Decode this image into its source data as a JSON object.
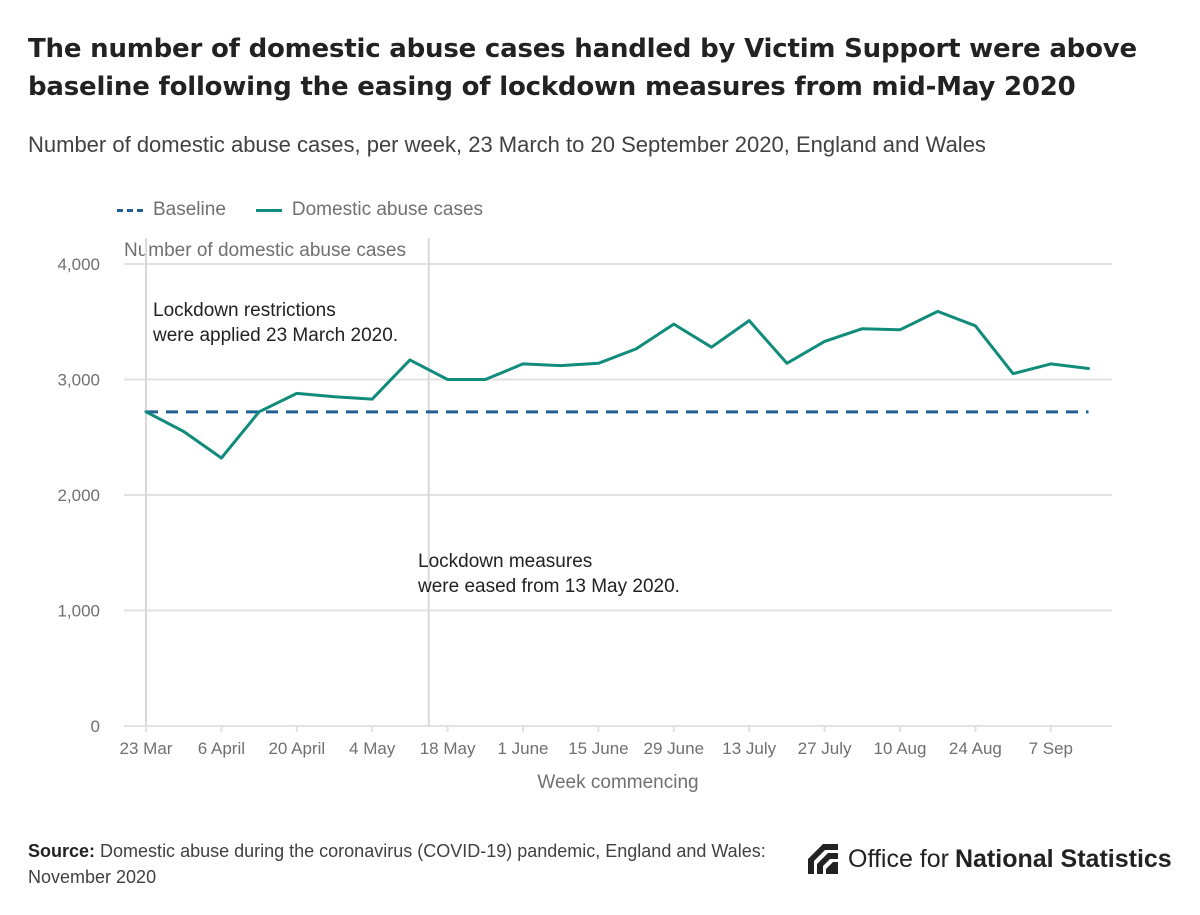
{
  "title": "The number of domestic abuse cases handled by Victim Support were above baseline following the easing of lockdown measures from mid-May 2020",
  "subtitle": "Number of domestic abuse cases, per week, 23 March to 20 September 2020, England and Wales",
  "legend": {
    "baseline": "Baseline",
    "cases": "Domestic abuse cases"
  },
  "colors": {
    "cases": "#118c7b",
    "baseline": "#206095",
    "grid": "#e2e2e3",
    "annotation_line": "#d9d9dc",
    "axis_text": "#707071"
  },
  "chart_data": {
    "type": "line",
    "title": "The number of domestic abuse cases handled by Victim Support were above baseline following the easing of lockdown measures from mid-May 2020",
    "ylabel": "Number of domestic abuse cases",
    "xlabel": "Week commencing",
    "ylim": [
      0,
      4000
    ],
    "yticks": [
      0,
      1000,
      2000,
      3000,
      4000
    ],
    "ytick_labels": [
      "0",
      "1,000",
      "2,000",
      "3,000",
      "4,000"
    ],
    "x_ticks": [
      "23 Mar",
      "6 April",
      "20 April",
      "4 May",
      "18 May",
      "1 June",
      "15 June",
      "29 June",
      "13 July",
      "27 July",
      "10 Aug",
      "24 Aug",
      "7 Sep"
    ],
    "x_tick_indices": [
      0,
      2,
      4,
      6,
      8,
      10,
      12,
      14,
      16,
      18,
      20,
      22,
      24
    ],
    "n_weeks": 26,
    "series": [
      {
        "name": "Domestic abuse cases",
        "values": [
          2720,
          2550,
          2320,
          2720,
          2880,
          2850,
          2830,
          3170,
          3000,
          3000,
          3135,
          3120,
          3140,
          3265,
          3480,
          3280,
          3510,
          3140,
          3330,
          3440,
          3430,
          3590,
          3465,
          3050,
          3135,
          3095
        ]
      },
      {
        "name": "Baseline",
        "values": [
          2720,
          2720
        ]
      }
    ],
    "baseline_value": 2720,
    "annotations": [
      {
        "text_lines": [
          "Lockdown restrictions",
          "were applied 23 March 2020."
        ],
        "x_index": 0
      },
      {
        "text_lines": [
          "Lockdown measures",
          "were eased from 13 May 2020."
        ],
        "x_index": 7.5
      }
    ],
    "grid": true
  },
  "source": {
    "label": "Source:",
    "text": "Domestic abuse during the coronavirus (COVID-19) pandemic, England and Wales: November 2020"
  },
  "logo": {
    "text_regular": "Office for",
    "text_bold": "National Statistics"
  }
}
